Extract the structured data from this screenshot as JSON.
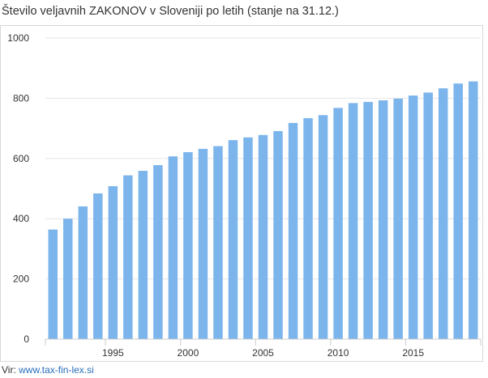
{
  "title": "Število veljavnih ZAKONOV v Sloveniji po letih (stanje na 31.12.)",
  "source": {
    "prefix": "Vir: ",
    "link_text": "www.tax-fin-lex.si"
  },
  "colors": {
    "bar": "#7cb5ec",
    "grid": "#e6e6e6",
    "axis": "#cccccc",
    "link": "#2a6ebb"
  },
  "chart_data": {
    "type": "bar",
    "title": "Število veljavnih ZAKONOV v Sloveniji po letih (stanje na 31.12.)",
    "xlabel": "",
    "ylabel": "",
    "ylim": [
      0,
      1000
    ],
    "y_ticks": [
      0,
      200,
      400,
      600,
      800,
      1000
    ],
    "x_tick_labels": [
      "1995",
      "2000",
      "2005",
      "2010",
      "2015"
    ],
    "grid": true,
    "legend": "none",
    "categories": [
      1991,
      1992,
      1993,
      1994,
      1995,
      1996,
      1997,
      1998,
      1999,
      2000,
      2001,
      2002,
      2003,
      2004,
      2005,
      2006,
      2007,
      2008,
      2009,
      2010,
      2011,
      2012,
      2013,
      2014,
      2015,
      2016,
      2017,
      2018,
      2019
    ],
    "values": [
      364,
      400,
      441,
      484,
      508,
      544,
      559,
      578,
      607,
      621,
      632,
      641,
      661,
      670,
      678,
      691,
      718,
      734,
      744,
      768,
      784,
      788,
      793,
      799,
      809,
      819,
      833,
      849,
      856
    ]
  }
}
